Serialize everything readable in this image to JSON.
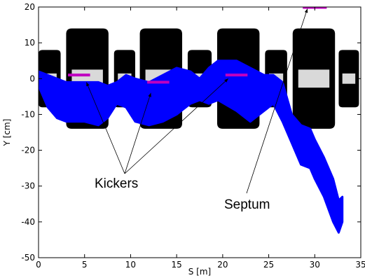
{
  "chart_data": {
    "type": "scatter",
    "title": "",
    "xlabel": "S [m]",
    "ylabel": "Y [cm]",
    "xlim": [
      0,
      35
    ],
    "ylim": [
      -50,
      20
    ],
    "xticks": [
      0,
      5,
      10,
      15,
      20,
      25,
      30,
      35
    ],
    "yticks": [
      -50,
      -40,
      -30,
      -20,
      -10,
      0,
      10,
      20
    ],
    "grid": false,
    "legend": "none",
    "colors": {
      "aperture": "#000000",
      "beam": "#0000ff",
      "kickers": "#c000c0"
    },
    "aperture_segments": [
      {
        "s_start": 0.0,
        "s_end": 2.4,
        "y_top": 8,
        "y_bottom": -8
      },
      {
        "s_start": 3.0,
        "s_end": 7.6,
        "y_top": 14,
        "y_bottom": -14
      },
      {
        "s_start": 8.2,
        "s_end": 10.5,
        "y_top": 8,
        "y_bottom": -8
      },
      {
        "s_start": 11.0,
        "s_end": 15.6,
        "y_top": 14,
        "y_bottom": -14
      },
      {
        "s_start": 16.2,
        "s_end": 18.8,
        "y_top": 8,
        "y_bottom": -8
      },
      {
        "s_start": 19.4,
        "s_end": 24.0,
        "y_top": 14,
        "y_bottom": -14
      },
      {
        "s_start": 24.6,
        "s_end": 27.0,
        "y_top": 8,
        "y_bottom": -8
      },
      {
        "s_start": 27.6,
        "s_end": 32.2,
        "y_top": 14,
        "y_bottom": -14
      },
      {
        "s_start": 32.6,
        "s_end": 34.8,
        "y_top": 8,
        "y_bottom": -8
      }
    ],
    "beam_envelope": [
      {
        "s": 0.0,
        "y_top": 2,
        "y_bottom": -2
      },
      {
        "s": 1.0,
        "y_top": 1,
        "y_bottom": -8
      },
      {
        "s": 2.0,
        "y_top": 0,
        "y_bottom": -11
      },
      {
        "s": 3.0,
        "y_top": -1,
        "y_bottom": -12
      },
      {
        "s": 5.0,
        "y_top": -1,
        "y_bottom": -12
      },
      {
        "s": 6.5,
        "y_top": -1,
        "y_bottom": -13
      },
      {
        "s": 7.5,
        "y_top": -2,
        "y_bottom": -11
      },
      {
        "s": 8.5,
        "y_top": -1,
        "y_bottom": -7
      },
      {
        "s": 9.5,
        "y_top": 1,
        "y_bottom": -8
      },
      {
        "s": 10.5,
        "y_top": 0,
        "y_bottom": -12
      },
      {
        "s": 12.0,
        "y_top": -1,
        "y_bottom": -13
      },
      {
        "s": 13.5,
        "y_top": 1,
        "y_bottom": -12
      },
      {
        "s": 15.0,
        "y_top": 3,
        "y_bottom": -10
      },
      {
        "s": 16.5,
        "y_top": 2,
        "y_bottom": -7
      },
      {
        "s": 17.5,
        "y_top": 0,
        "y_bottom": -6
      },
      {
        "s": 18.5,
        "y_top": 3,
        "y_bottom": -7
      },
      {
        "s": 19.5,
        "y_top": 5,
        "y_bottom": -6
      },
      {
        "s": 21.5,
        "y_top": 5,
        "y_bottom": -9
      },
      {
        "s": 23.0,
        "y_top": 3,
        "y_bottom": -12
      },
      {
        "s": 24.5,
        "y_top": 1,
        "y_bottom": -9
      },
      {
        "s": 25.5,
        "y_top": 1,
        "y_bottom": -7
      },
      {
        "s": 26.5,
        "y_top": -1,
        "y_bottom": -12
      },
      {
        "s": 27.5,
        "y_top": -10,
        "y_bottom": -18
      },
      {
        "s": 28.5,
        "y_top": -13,
        "y_bottom": -24
      },
      {
        "s": 29.5,
        "y_top": -14,
        "y_bottom": -25
      },
      {
        "s": 30.0,
        "y_top": -17,
        "y_bottom": -28
      },
      {
        "s": 31.0,
        "y_top": -22,
        "y_bottom": -33
      },
      {
        "s": 32.0,
        "y_top": -28,
        "y_bottom": -40
      },
      {
        "s": 32.6,
        "y_top": -34,
        "y_bottom": -43
      },
      {
        "s": 33.0,
        "y_top": -33,
        "y_bottom": -40
      }
    ],
    "kickers": [
      {
        "s_start": 3.2,
        "s_end": 5.6,
        "y": 1
      },
      {
        "s_start": 11.8,
        "s_end": 14.2,
        "y": -1
      },
      {
        "s_start": 20.3,
        "s_end": 22.7,
        "y": 1
      }
    ],
    "septum": {
      "s_start": 28.7,
      "s_end": 31.3,
      "y": 20
    },
    "annotations": [
      {
        "text": "Kickers",
        "pointers": [
          [
            5.2,
            -1
          ],
          [
            12.2,
            -4
          ],
          [
            20.6,
            0
          ]
        ]
      },
      {
        "text": "Septum",
        "pointers": [
          [
            29.2,
            19.5
          ]
        ]
      }
    ]
  }
}
